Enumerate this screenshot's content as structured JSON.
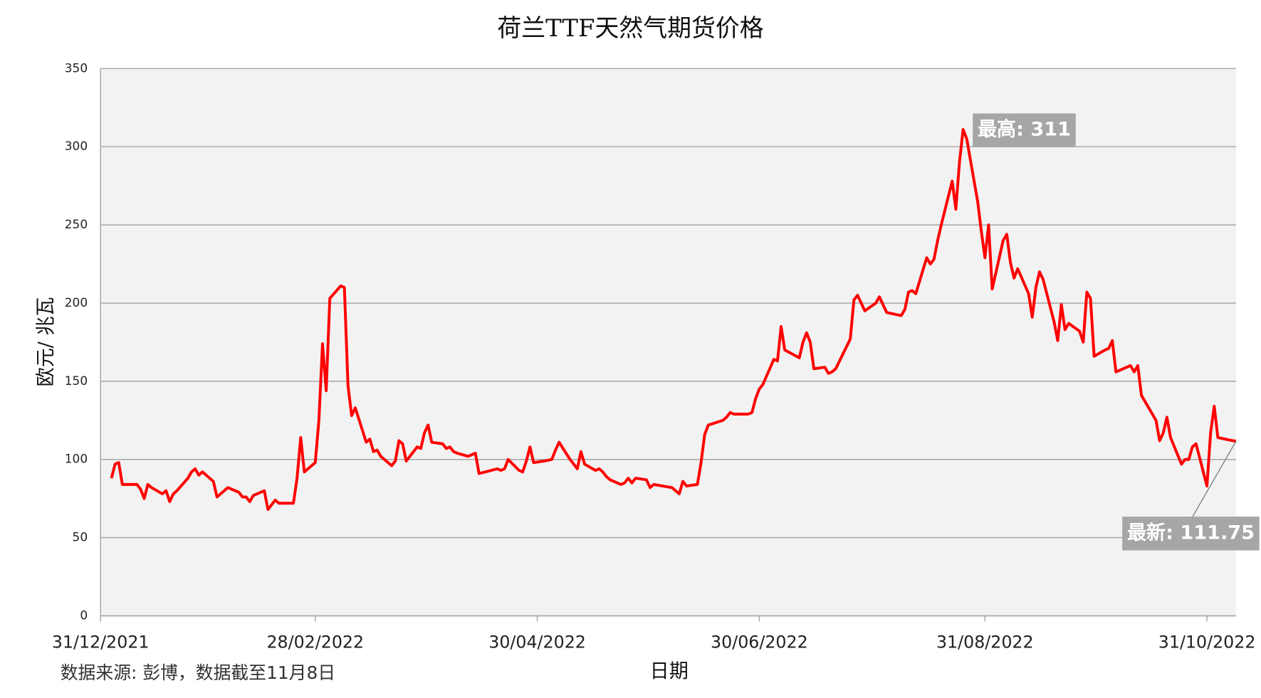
{
  "chart_data": {
    "type": "line",
    "title": "荷兰TTF天然气期货价格",
    "x_label": "日期",
    "y_label": "欧元/ 兆瓦",
    "source": "数据来源: 彭博，数据截至11月8日",
    "xlim": [
      "2021-12-31",
      "2022-11-08"
    ],
    "xticks": [
      {
        "value": "2021-12-31",
        "label": "31/12/2021"
      },
      {
        "value": "2022-02-28",
        "label": "28/02/2022"
      },
      {
        "value": "2022-04-30",
        "label": "30/04/2022"
      },
      {
        "value": "2022-06-30",
        "label": "30/06/2022"
      },
      {
        "value": "2022-08-31",
        "label": "31/08/2022"
      },
      {
        "value": "2022-10-31",
        "label": "31/10/2022"
      }
    ],
    "ylim": [
      0,
      350
    ],
    "yticks": [
      0,
      50,
      100,
      150,
      200,
      250,
      300,
      350
    ],
    "grid": true,
    "x": [
      "2022-01-03",
      "2022-01-04",
      "2022-01-05",
      "2022-01-06",
      "2022-01-07",
      "2022-01-10",
      "2022-01-11",
      "2022-01-12",
      "2022-01-13",
      "2022-01-14",
      "2022-01-17",
      "2022-01-18",
      "2022-01-19",
      "2022-01-20",
      "2022-01-21",
      "2022-01-24",
      "2022-01-25",
      "2022-01-26",
      "2022-01-27",
      "2022-01-28",
      "2022-01-31",
      "2022-02-01",
      "2022-02-02",
      "2022-02-03",
      "2022-02-04",
      "2022-02-07",
      "2022-02-08",
      "2022-02-09",
      "2022-02-10",
      "2022-02-11",
      "2022-02-14",
      "2022-02-15",
      "2022-02-16",
      "2022-02-17",
      "2022-02-18",
      "2022-02-21",
      "2022-02-22",
      "2022-02-23",
      "2022-02-24",
      "2022-02-25",
      "2022-02-28",
      "2022-03-01",
      "2022-03-02",
      "2022-03-03",
      "2022-03-04",
      "2022-03-07",
      "2022-03-08",
      "2022-03-09",
      "2022-03-10",
      "2022-03-11",
      "2022-03-14",
      "2022-03-15",
      "2022-03-16",
      "2022-03-17",
      "2022-03-18",
      "2022-03-21",
      "2022-03-22",
      "2022-03-23",
      "2022-03-24",
      "2022-03-25",
      "2022-03-28",
      "2022-03-29",
      "2022-03-30",
      "2022-03-31",
      "2022-04-01",
      "2022-04-04",
      "2022-04-05",
      "2022-04-06",
      "2022-04-07",
      "2022-04-08",
      "2022-04-11",
      "2022-04-12",
      "2022-04-13",
      "2022-04-14",
      "2022-04-19",
      "2022-04-20",
      "2022-04-21",
      "2022-04-22",
      "2022-04-25",
      "2022-04-26",
      "2022-04-27",
      "2022-04-28",
      "2022-04-29",
      "2022-05-02",
      "2022-05-04",
      "2022-05-05",
      "2022-05-06",
      "2022-05-09",
      "2022-05-10",
      "2022-05-11",
      "2022-05-12",
      "2022-05-13",
      "2022-05-16",
      "2022-05-17",
      "2022-05-18",
      "2022-05-19",
      "2022-05-20",
      "2022-05-23",
      "2022-05-24",
      "2022-05-25",
      "2022-05-26",
      "2022-05-27",
      "2022-05-30",
      "2022-05-31",
      "2022-06-01",
      "2022-06-06",
      "2022-06-08",
      "2022-06-09",
      "2022-06-10",
      "2022-06-13",
      "2022-06-14",
      "2022-06-15",
      "2022-06-16",
      "2022-06-20",
      "2022-06-21",
      "2022-06-22",
      "2022-06-23",
      "2022-06-27",
      "2022-06-28",
      "2022-06-29",
      "2022-06-30",
      "2022-07-01",
      "2022-07-04",
      "2022-07-05",
      "2022-07-06",
      "2022-07-07",
      "2022-07-11",
      "2022-07-12",
      "2022-07-13",
      "2022-07-14",
      "2022-07-15",
      "2022-07-18",
      "2022-07-19",
      "2022-07-20",
      "2022-07-21",
      "2022-07-25",
      "2022-07-26",
      "2022-07-27",
      "2022-07-29",
      "2022-08-01",
      "2022-08-02",
      "2022-08-03",
      "2022-08-04",
      "2022-08-08",
      "2022-08-09",
      "2022-08-10",
      "2022-08-11",
      "2022-08-12",
      "2022-08-15",
      "2022-08-16",
      "2022-08-17",
      "2022-08-18",
      "2022-08-19",
      "2022-08-22",
      "2022-08-23",
      "2022-08-24",
      "2022-08-25",
      "2022-08-26",
      "2022-08-29",
      "2022-08-30",
      "2022-08-31",
      "2022-09-01",
      "2022-09-02",
      "2022-09-05",
      "2022-09-06",
      "2022-09-07",
      "2022-09-08",
      "2022-09-09",
      "2022-09-12",
      "2022-09-13",
      "2022-09-14",
      "2022-09-15",
      "2022-09-16",
      "2022-09-19",
      "2022-09-20",
      "2022-09-21",
      "2022-09-22",
      "2022-09-23",
      "2022-09-26",
      "2022-09-27",
      "2022-09-28",
      "2022-09-29",
      "2022-09-30",
      "2022-10-03",
      "2022-10-04",
      "2022-10-05",
      "2022-10-06",
      "2022-10-10",
      "2022-10-11",
      "2022-10-12",
      "2022-10-13",
      "2022-10-17",
      "2022-10-18",
      "2022-10-19",
      "2022-10-20",
      "2022-10-21",
      "2022-10-24",
      "2022-10-25",
      "2022-10-26",
      "2022-10-27",
      "2022-10-28",
      "2022-10-31",
      "2022-11-01",
      "2022-11-02",
      "2022-11-03",
      "2022-11-07",
      "2022-11-08"
    ],
    "series": [
      {
        "name": "TTF",
        "color": "#ff0000",
        "values": [
          88,
          97,
          98,
          84,
          84,
          84,
          81,
          75,
          84,
          82,
          78,
          80,
          73,
          78,
          80,
          88,
          92,
          94,
          90,
          92,
          86,
          76,
          78,
          80,
          82,
          79,
          76,
          76,
          73,
          77,
          80,
          68,
          71,
          74,
          72,
          72,
          72,
          88,
          114,
          92,
          98,
          125,
          174,
          144,
          203,
          211,
          210,
          147,
          128,
          133,
          111,
          113,
          105,
          106,
          102,
          96,
          99,
          112,
          110,
          99,
          108,
          107,
          117,
          122,
          111,
          110,
          107,
          108,
          105,
          104,
          102,
          103,
          104,
          91,
          94,
          93,
          94,
          100,
          93,
          92,
          99,
          108,
          98,
          99,
          100,
          106,
          111,
          100,
          97,
          94,
          105,
          97,
          93,
          94,
          92,
          89,
          87,
          84,
          85,
          88,
          85,
          88,
          87,
          82,
          84,
          82,
          78,
          86,
          83,
          84,
          98,
          116,
          122,
          125,
          127,
          130,
          129,
          129,
          130,
          139,
          145,
          148,
          164,
          163,
          185,
          170,
          165,
          175,
          181,
          175,
          158,
          159,
          155,
          156,
          158,
          177,
          202,
          205,
          195,
          200,
          204,
          199,
          194,
          192,
          196,
          207,
          208,
          206,
          229,
          225,
          228,
          240,
          250,
          278,
          260,
          290,
          311,
          305,
          265,
          246,
          229,
          250,
          209,
          240,
          244,
          226,
          216,
          222,
          206,
          191,
          210,
          220,
          215,
          188,
          176,
          199,
          183,
          187,
          182,
          175,
          207,
          203,
          166,
          170,
          171,
          176,
          156,
          160,
          156,
          160,
          141,
          125,
          112,
          117,
          127,
          114,
          97,
          100,
          100,
          108,
          110,
          83,
          117,
          134,
          114,
          112,
          111.75
        ]
      }
    ],
    "annotations": [
      {
        "text": "最高: 311",
        "x": "2022-08-25",
        "y": 311
      },
      {
        "text": "最新: 111.75",
        "x": "2022-11-08",
        "y": 111.75
      }
    ]
  }
}
